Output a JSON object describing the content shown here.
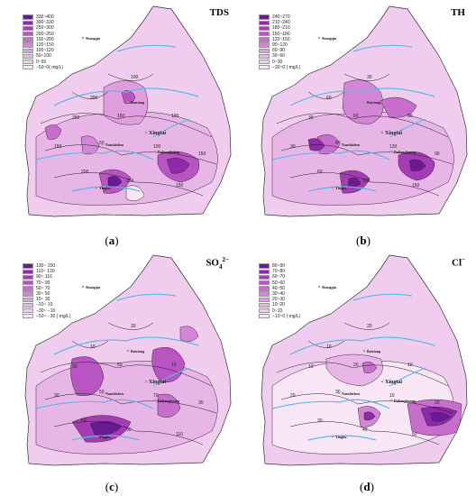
{
  "panels": [
    {
      "id": "a",
      "title": "TDS",
      "caption_letter": "a",
      "legend": [
        "330~400",
        "300~330",
        "250~300",
        "200~250",
        "150~200",
        "120~150",
        "100~120",
        "50~100",
        "0~50",
        "−50~0( mg/L)"
      ],
      "colors": [
        "#6b1a96",
        "#8e2aa8",
        "#a53cb6",
        "#b955c2",
        "#c76ecd",
        "#d486d6",
        "#df9fde",
        "#e8b6e6",
        "#f0cdee",
        "#f8e6f7"
      ],
      "cities": {
        "shangqiu": "Shangqiu",
        "baixiang": "Baixiang",
        "xingtai": "Xingtai",
        "nanshizhen": "Nanshizhen",
        "dalianghuang": "Dalianghuang",
        "yinghu": "Yinghu"
      },
      "contours": [
        "250",
        "150",
        "100",
        "150",
        "50",
        "100",
        "150",
        "200",
        "250",
        "150",
        "100",
        "200"
      ]
    },
    {
      "id": "b",
      "title": "TH",
      "caption_letter": "b",
      "legend": [
        "240~270",
        "210~240",
        "180~210",
        "150~180",
        "120~150",
        "90~120",
        "60~90",
        "30~60",
        "0~30",
        "−30~0 ( mg/L)"
      ],
      "colors": [
        "#6b1a96",
        "#8e2aa8",
        "#a53cb6",
        "#b955c2",
        "#c76ecd",
        "#d486d6",
        "#df9fde",
        "#e8b6e6",
        "#f0cdee",
        "#f8e6f7"
      ],
      "cities": {
        "shangqiu": "Shangqiu",
        "baixiang": "Baixiang",
        "xingtai": "Xingtai",
        "nanshizhen": "Nanshizhen",
        "dalianghuang": "Dalianghuang",
        "yinghu": "Yinghu"
      },
      "contours": [
        "30",
        "60",
        "90",
        "30",
        "60",
        "120",
        "90",
        "60",
        "120",
        "150",
        "30",
        "60"
      ]
    },
    {
      "id": "c",
      "title": "SO",
      "title_sub": "4",
      "title_sup": "2−",
      "caption_letter": "c",
      "legend": [
        "130~ 150",
        "110~ 130",
        "90~ 110",
        "70~ 90",
        "50~ 70",
        "30~ 50",
        "10~ 30",
        "−10~ 10",
        "−30~ −10",
        "−50~ −30 ( mg/L)"
      ],
      "colors": [
        "#6b1a96",
        "#8e2aa8",
        "#a53cb6",
        "#b955c2",
        "#c76ecd",
        "#d486d6",
        "#df9fde",
        "#e8b6e6",
        "#f0cdee",
        "#f8e6f7"
      ],
      "cities": {
        "shangqiu": "Shangqiu",
        "baixiang": "Baixiang",
        "xingtai": "Xingtai",
        "nanshizhen": "Nanshizhen",
        "dalianghuang": "Dalianghuang",
        "yinghu": "Yinghu"
      },
      "contours": [
        "30",
        "50",
        "10",
        "30",
        "50",
        "70",
        "30",
        "50",
        "90",
        "110",
        "30",
        "10"
      ]
    },
    {
      "id": "d",
      "title": "Cl",
      "title_sup": "−",
      "caption_letter": "d",
      "legend": [
        "80~90",
        "70~80",
        "60~70",
        "50~60",
        "40~50",
        "30~40",
        "20~30",
        "10~20",
        "0~10",
        "−10~0 ( mg/L)"
      ],
      "colors": [
        "#6b1a96",
        "#8e2aa8",
        "#a53cb6",
        "#b955c2",
        "#c76ecd",
        "#d486d6",
        "#df9fde",
        "#e8b6e6",
        "#f0cdee",
        "#f8e6f7"
      ],
      "cities": {
        "shangqiu": "Shangqiu",
        "baixiang": "Baixiang",
        "xingtai": "Xingtai",
        "nanshizhen": "Nanshizhen",
        "dalianghuang": "Dalianghuang",
        "yinghu": "Yinghu"
      },
      "contours": [
        "10",
        "20",
        "10",
        "20",
        "30",
        "10",
        "20",
        "30",
        "40",
        "50",
        "20",
        "10"
      ]
    }
  ],
  "river_color": "#5bb8e8"
}
